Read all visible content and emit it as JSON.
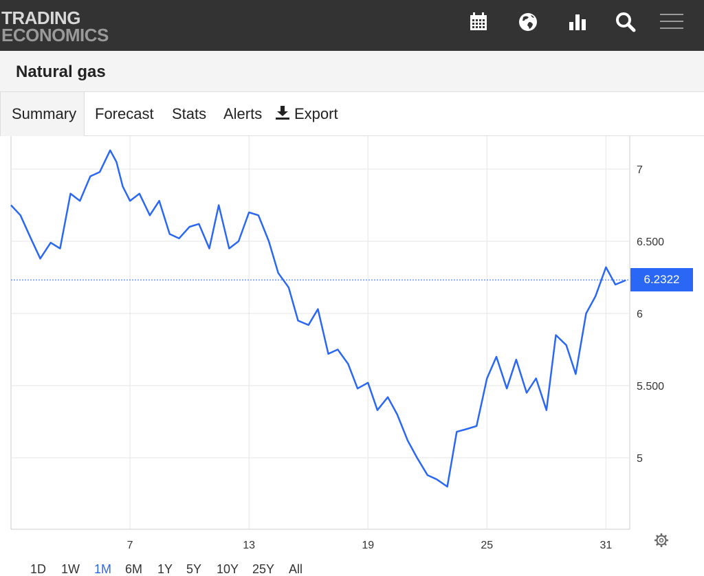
{
  "brand": {
    "line1": "TRADING",
    "line2": "ECONOMICS"
  },
  "header_icons": [
    "calendar-icon",
    "globe-icon",
    "bar-chart-icon",
    "search-icon",
    "hamburger-menu-icon"
  ],
  "page": {
    "title": "Natural gas"
  },
  "tabs": [
    {
      "label": "Summary",
      "active": true
    },
    {
      "label": "Forecast",
      "active": false
    },
    {
      "label": "Stats",
      "active": false
    },
    {
      "label": "Alerts",
      "active": false
    },
    {
      "label": "Export",
      "active": false,
      "icon": "download-icon"
    }
  ],
  "chart_data": {
    "type": "line",
    "xlabel": "",
    "ylabel": "",
    "x_ticks": [
      "7",
      "13",
      "19",
      "25",
      "31"
    ],
    "y_ticks": [
      "5",
      "5.500",
      "6",
      "6.500",
      "7"
    ],
    "ylim": [
      4.5,
      7.2
    ],
    "grid": true,
    "current_value": "6.2322",
    "series": [
      {
        "color": "#2a67f5",
        "x": [
          "1",
          "1",
          "2",
          "2",
          "3",
          "3",
          "4",
          "4",
          "5",
          "5",
          "6",
          "6",
          "6",
          "7",
          "7",
          "8",
          "8",
          "9",
          "9",
          "10",
          "10",
          "11",
          "11",
          "12",
          "12",
          "13",
          "13",
          "14",
          "14",
          "15",
          "15",
          "16",
          "16",
          "17",
          "17",
          "18",
          "18",
          "19",
          "19",
          "20",
          "20",
          "21",
          "21",
          "22",
          "22",
          "23",
          "23",
          "24",
          "24",
          "25",
          "25",
          "26",
          "26",
          "27",
          "27",
          "28",
          "28",
          "29",
          "29",
          "30",
          "30",
          "31",
          "31",
          "32"
        ],
        "values": [
          6.75,
          6.68,
          6.52,
          6.38,
          6.49,
          6.45,
          6.83,
          6.78,
          6.95,
          6.98,
          7.13,
          7.05,
          6.88,
          6.78,
          6.83,
          6.68,
          6.78,
          6.55,
          6.52,
          6.6,
          6.62,
          6.45,
          6.75,
          6.45,
          6.5,
          6.7,
          6.68,
          6.5,
          6.28,
          6.18,
          5.95,
          5.92,
          6.03,
          5.72,
          5.75,
          5.65,
          5.48,
          5.52,
          5.33,
          5.42,
          5.3,
          5.12,
          5.0,
          4.88,
          4.85,
          4.8,
          5.18,
          5.2,
          5.22,
          5.55,
          5.7,
          5.48,
          5.68,
          5.45,
          5.55,
          5.33,
          5.85,
          5.78,
          5.58,
          6.0,
          6.12,
          6.32,
          6.2,
          6.23
        ]
      }
    ]
  },
  "ranges": [
    {
      "label": "1D",
      "active": false
    },
    {
      "label": "1W",
      "active": false
    },
    {
      "label": "1M",
      "active": true
    },
    {
      "label": "6M",
      "active": false
    },
    {
      "label": "1Y",
      "active": false
    },
    {
      "label": "5Y",
      "active": false
    },
    {
      "label": "10Y",
      "active": false
    },
    {
      "label": "25Y",
      "active": false
    },
    {
      "label": "All",
      "active": false
    }
  ]
}
